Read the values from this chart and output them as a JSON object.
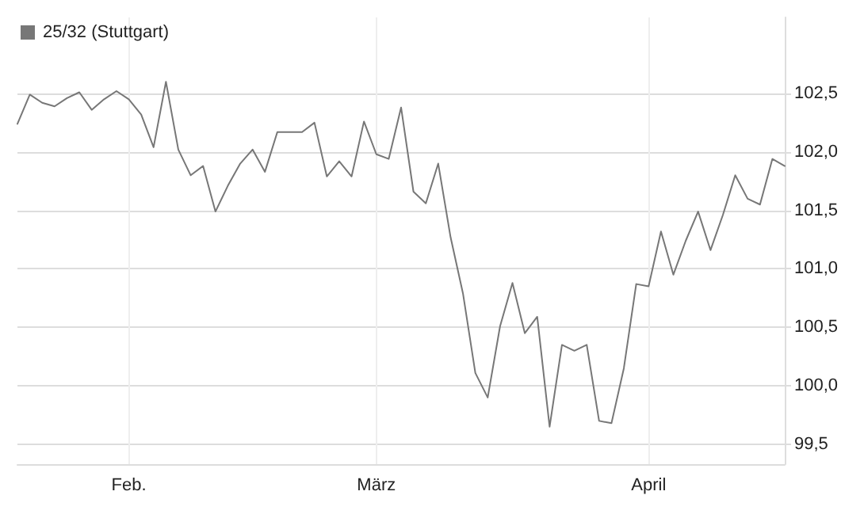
{
  "chart_data": {
    "type": "line",
    "categories": [
      null,
      null,
      null,
      null,
      null,
      null,
      null,
      null,
      null,
      "Feb.",
      null,
      null,
      null,
      null,
      null,
      null,
      null,
      null,
      null,
      null,
      null,
      null,
      null,
      null,
      null,
      null,
      null,
      null,
      null,
      "März",
      null,
      null,
      null,
      null,
      null,
      null,
      null,
      null,
      null,
      null,
      null,
      null,
      null,
      null,
      null,
      null,
      null,
      null,
      null,
      null,
      null,
      "April",
      null,
      null,
      null,
      null,
      null,
      null,
      null,
      null,
      null,
      null,
      null
    ],
    "series": [
      {
        "name": "25/32 (Stuttgart)",
        "color": "#777777",
        "values": [
          102.24,
          102.49,
          102.42,
          102.39,
          102.46,
          102.51,
          102.36,
          102.45,
          102.52,
          102.45,
          102.32,
          102.04,
          102.6,
          102.02,
          101.8,
          101.88,
          101.49,
          101.71,
          101.9,
          102.02,
          101.83,
          102.17,
          102.17,
          102.17,
          102.25,
          101.79,
          101.92,
          101.79,
          102.26,
          101.98,
          101.94,
          102.38,
          101.66,
          101.56,
          101.9,
          101.27,
          100.79,
          100.11,
          99.9,
          100.51,
          100.88,
          100.45,
          100.59,
          99.65,
          100.35,
          100.3,
          100.35,
          99.7,
          99.68,
          100.15,
          100.87,
          100.85,
          101.32,
          100.95,
          101.24,
          101.49,
          101.16,
          101.46,
          101.8,
          101.6,
          101.55,
          101.94,
          101.88
        ]
      }
    ],
    "ylim": [
      99.33,
      103.15
    ],
    "yticks": [
      {
        "value": 99.5,
        "label": "99,5"
      },
      {
        "value": 100,
        "label": "100,0"
      },
      {
        "value": 100.5,
        "label": "100,5"
      },
      {
        "value": 101,
        "label": "101,0"
      },
      {
        "value": 101.5,
        "label": "101,5"
      },
      {
        "value": 102,
        "label": "102,0"
      },
      {
        "value": 102.5,
        "label": "102,5"
      }
    ],
    "grid": true,
    "legend": "top left",
    "marker": "none",
    "line_style": "solid"
  }
}
